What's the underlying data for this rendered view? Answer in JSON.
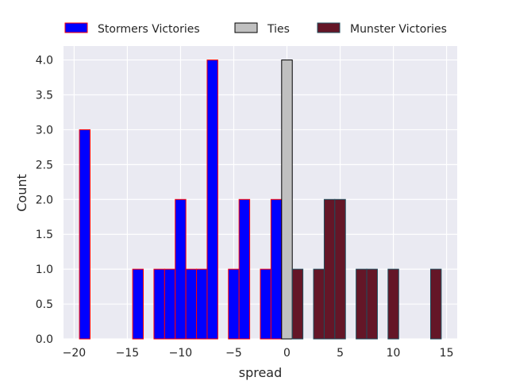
{
  "chart_data": {
    "type": "bar",
    "xlabel": "spread",
    "ylabel": "Count",
    "xlim": [
      -21,
      16
    ],
    "ylim": [
      0,
      4.2
    ],
    "xticks": [
      -20,
      -15,
      -10,
      -5,
      0,
      5,
      10,
      15
    ],
    "xtick_labels": [
      "−20",
      "−15",
      "−10",
      "−5",
      "0",
      "5",
      "10",
      "15"
    ],
    "yticks": [
      0,
      0.5,
      1,
      1.5,
      2,
      2.5,
      3,
      3.5,
      4
    ],
    "ytick_labels": [
      "0.0",
      "0.5",
      "1.0",
      "1.5",
      "2.0",
      "2.5",
      "3.0",
      "3.5",
      "4.0"
    ],
    "grid": true,
    "legend_position": "top",
    "bin_width": 1,
    "series": [
      {
        "name": "Stormers Victories",
        "color": "#0000ff",
        "edge_color": "#ff0000",
        "x": [
          -19,
          -14,
          -12,
          -11,
          -10,
          -9,
          -8,
          -7,
          -5,
          -4,
          -2,
          -1
        ],
        "values": [
          3,
          1,
          1,
          1,
          2,
          1,
          1,
          4,
          1,
          2,
          1,
          2
        ]
      },
      {
        "name": "Ties",
        "color": "#c0c0c0",
        "edge_color": "#000000",
        "x": [
          0
        ],
        "values": [
          4
        ]
      },
      {
        "name": "Munster Victories",
        "color": "#641627",
        "edge_color": "#1f4d5c",
        "x": [
          1,
          3,
          4,
          5,
          7,
          8,
          10,
          14
        ],
        "values": [
          1,
          1,
          2,
          2,
          1,
          1,
          1,
          1
        ]
      }
    ]
  }
}
